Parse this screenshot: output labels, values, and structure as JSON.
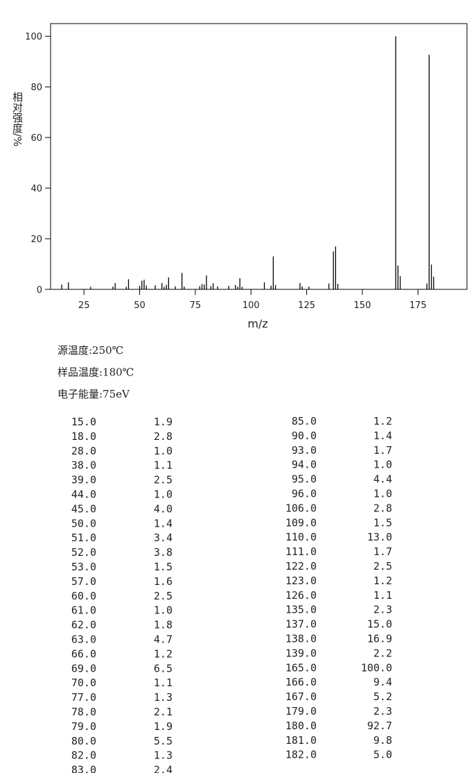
{
  "chart_data": {
    "type": "bar",
    "xlabel": "m/z",
    "ylabel": "相对强度/%",
    "x": [
      15,
      18,
      28,
      38,
      39,
      44,
      45,
      50,
      51,
      52,
      53,
      57,
      60,
      61,
      62,
      63,
      66,
      69,
      70,
      77,
      78,
      79,
      80,
      82,
      83,
      85,
      90,
      93,
      94,
      95,
      96,
      106,
      109,
      110,
      111,
      122,
      123,
      126,
      135,
      137,
      138,
      139,
      165,
      166,
      167,
      179,
      180,
      181,
      182
    ],
    "x_labels": [
      "15.0",
      "18.0",
      "28.0",
      "38.0",
      "39.0",
      "44.0",
      "45.0",
      "50.0",
      "51.0",
      "52.0",
      "53.0",
      "57.0",
      "60.0",
      "61.0",
      "62.0",
      "63.0",
      "66.0",
      "69.0",
      "70.0",
      "77.0",
      "78.0",
      "79.0",
      "80.0",
      "82.0",
      "83.0",
      "85.0",
      "90.0",
      "93.0",
      "94.0",
      "95.0",
      "96.0",
      "106.0",
      "109.0",
      "110.0",
      "111.0",
      "122.0",
      "123.0",
      "126.0",
      "135.0",
      "137.0",
      "138.0",
      "139.0",
      "165.0",
      "166.0",
      "167.0",
      "179.0",
      "180.0",
      "181.0",
      "182.0"
    ],
    "values": [
      1.9,
      2.8,
      1.0,
      1.1,
      2.5,
      1.0,
      4.0,
      1.4,
      3.4,
      3.8,
      1.5,
      1.6,
      2.5,
      1.0,
      1.8,
      4.7,
      1.2,
      6.5,
      1.1,
      1.3,
      2.1,
      1.9,
      5.5,
      1.3,
      2.4,
      1.2,
      1.4,
      1.7,
      1.0,
      4.4,
      1.0,
      2.8,
      1.5,
      13.0,
      1.7,
      2.5,
      1.2,
      1.1,
      2.3,
      15.0,
      16.9,
      2.2,
      100.0,
      9.4,
      5.2,
      2.3,
      92.7,
      9.8,
      5.0
    ],
    "value_labels": [
      "1.9",
      "2.8",
      "1.0",
      "1.1",
      "2.5",
      "1.0",
      "4.0",
      "1.4",
      "3.4",
      "3.8",
      "1.5",
      "1.6",
      "2.5",
      "1.0",
      "1.8",
      "4.7",
      "1.2",
      "6.5",
      "1.1",
      "1.3",
      "2.1",
      "1.9",
      "5.5",
      "1.3",
      "2.4",
      "1.2",
      "1.4",
      "1.7",
      "1.0",
      "4.4",
      "1.0",
      "2.8",
      "1.5",
      "13.0",
      "1.7",
      "2.5",
      "1.2",
      "1.1",
      "2.3",
      "15.0",
      "16.9",
      "2.2",
      "100.0",
      "9.4",
      "5.2",
      "2.3",
      "92.7",
      "9.8",
      "5.0"
    ],
    "color": "#000000",
    "xlim": [
      10,
      197
    ],
    "xticks": [
      25,
      50,
      75,
      100,
      125,
      150,
      175
    ],
    "ylim": [
      0,
      105
    ],
    "yticks": [
      0,
      20,
      40,
      60,
      80,
      100
    ]
  },
  "conditions": [
    "源温度:250℃",
    "样品温度:180℃",
    "电子能量:75eV"
  ]
}
